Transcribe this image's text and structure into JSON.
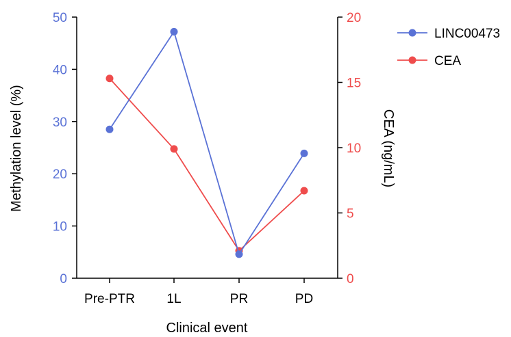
{
  "chart_data": {
    "type": "line",
    "categories": [
      "Pre-PTR",
      "1L",
      "PR",
      "PD"
    ],
    "xlabel": "Clinical event",
    "y_left": {
      "label": "Methylation level (%)",
      "range": [
        0,
        50
      ],
      "ticks": [
        "0",
        "10",
        "20",
        "30",
        "40",
        "50"
      ],
      "tick_values": [
        0,
        10,
        20,
        30,
        40,
        50
      ],
      "color": "#5a72d6"
    },
    "y_right": {
      "label": "CEA (ng/mL)",
      "range": [
        0,
        20
      ],
      "ticks": [
        "0",
        "5",
        "10",
        "15",
        "20"
      ],
      "tick_values": [
        0,
        5,
        10,
        15,
        20
      ],
      "color": "#ef4c4c"
    },
    "series": [
      {
        "name": "LINC00473",
        "axis": "left",
        "color": "#5a72d6",
        "values": [
          28.5,
          47.2,
          4.6,
          23.9
        ]
      },
      {
        "name": "CEA",
        "axis": "right",
        "color": "#ef4c4c",
        "values": [
          15.3,
          9.9,
          2.1,
          6.7
        ]
      }
    ],
    "legend": {
      "position": "top-right"
    },
    "grid": false
  }
}
